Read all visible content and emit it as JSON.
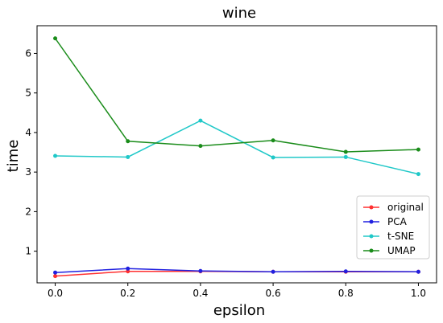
{
  "chart_data": {
    "type": "line",
    "title": "wine",
    "xlabel": "epsilon",
    "ylabel": "time",
    "x": [
      0.0,
      0.2,
      0.4,
      0.6,
      0.8,
      1.0
    ],
    "x_tick_labels": [
      "0.0",
      "0.2",
      "0.4",
      "0.6",
      "0.8",
      "1.0"
    ],
    "y_ticks": [
      1,
      2,
      3,
      4,
      5,
      6
    ],
    "y_tick_labels": [
      "1",
      "2",
      "3",
      "4",
      "5",
      "6"
    ],
    "xlim": [
      -0.05,
      1.05
    ],
    "ylim": [
      0.2,
      6.7
    ],
    "grid": false,
    "legend_position": "lower-right",
    "series": [
      {
        "name": "original",
        "color": "#ff3030",
        "values": [
          0.37,
          0.49,
          0.49,
          0.48,
          0.48,
          0.48
        ]
      },
      {
        "name": "PCA",
        "color": "#2020e0",
        "values": [
          0.46,
          0.56,
          0.5,
          0.48,
          0.49,
          0.48
        ]
      },
      {
        "name": "t-SNE",
        "color": "#20c8c8",
        "values": [
          3.41,
          3.38,
          4.3,
          3.37,
          3.38,
          2.95
        ]
      },
      {
        "name": "UMAP",
        "color": "#1a8c1a",
        "values": [
          6.38,
          3.78,
          3.66,
          3.8,
          3.51,
          3.57
        ]
      }
    ]
  }
}
